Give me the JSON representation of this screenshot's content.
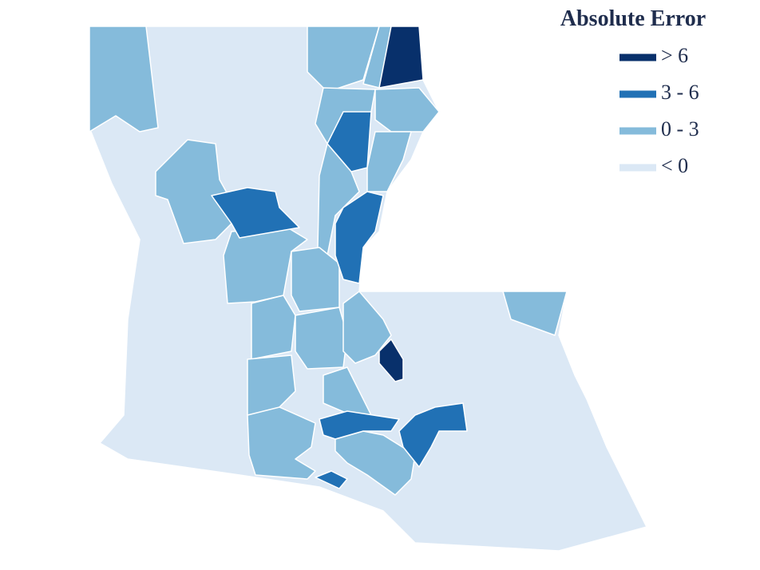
{
  "legend": {
    "title": "Absolute Error",
    "items": [
      {
        "label": "> 6",
        "color": "#08306b"
      },
      {
        "label": "3 - 6",
        "color": "#2171b5"
      },
      {
        "label": "0 - 3",
        "color": "#85bbdb"
      },
      {
        "label": "< 0",
        "color": "#dbe8f5"
      }
    ]
  }
}
